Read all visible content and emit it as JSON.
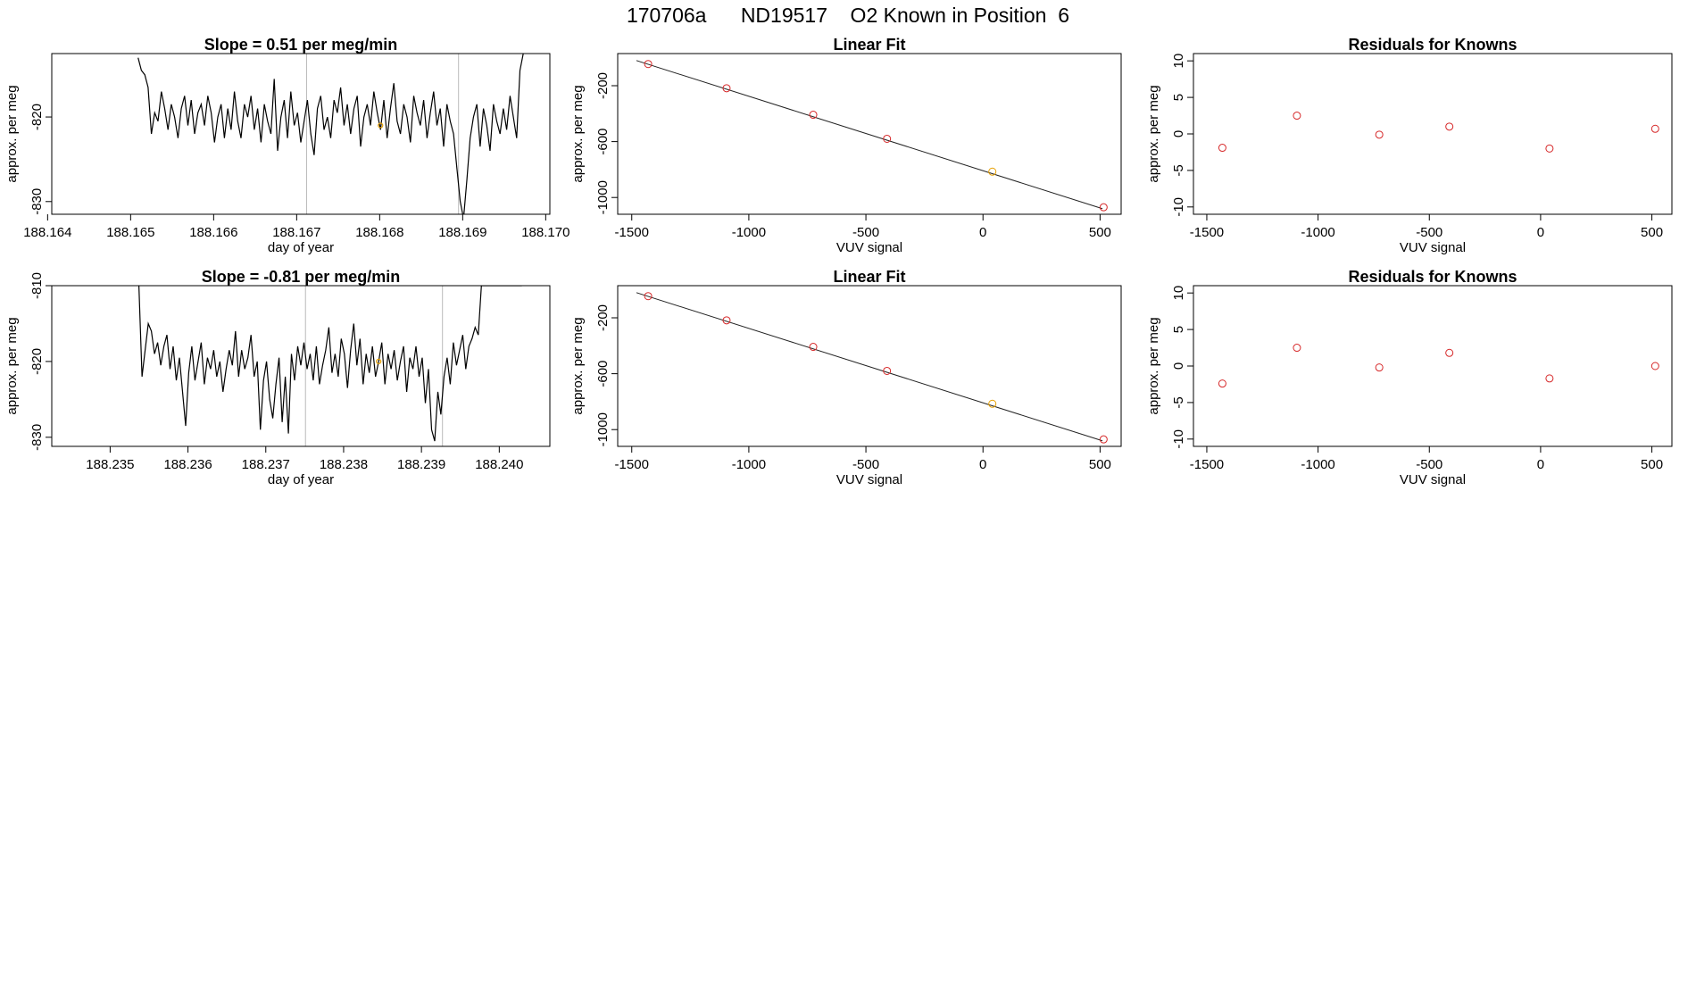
{
  "figure": {
    "title": "170706a      ND19517    O2 Known in Position  6"
  },
  "chart_data": [
    {
      "type": "line",
      "title": "Slope =  0.51  per meg/min",
      "xlabel": "day of year",
      "ylabel": "approx. per meg",
      "xlim": [
        188.16405,
        188.17005
      ],
      "ylim": [
        -831.5,
        -812.5
      ],
      "xticks": [
        188.164,
        188.165,
        188.166,
        188.167,
        188.168,
        188.169,
        188.17
      ],
      "xtick_labels": [
        "188.164",
        "188.165",
        "188.166",
        "188.167",
        "188.168",
        "188.169",
        "188.170"
      ],
      "yticks": [
        -830,
        -820
      ],
      "ytick_labels": [
        "-830",
        "-820"
      ],
      "vlines": [
        188.16712,
        188.16895
      ],
      "series": [
        {
          "color": "#000000",
          "x": [
            188.16509,
            188.16513,
            188.16517,
            188.16521,
            188.16525,
            188.16529,
            188.16533,
            188.16537,
            188.16541,
            188.16545,
            188.16549,
            188.16553,
            188.16557,
            188.16561,
            188.16565,
            188.16569,
            188.16573,
            188.16577,
            188.16581,
            188.16585,
            188.16589,
            188.16593,
            188.16597,
            188.16601,
            188.16605,
            188.16609,
            188.16613,
            188.16617,
            188.16621,
            188.16625,
            188.16629,
            188.16633,
            188.16637,
            188.16641,
            188.16645,
            188.16649,
            188.16653,
            188.16657,
            188.16661,
            188.16665,
            188.16669,
            188.16673,
            188.16677,
            188.16681,
            188.16685,
            188.16689,
            188.16693,
            188.16697,
            188.16701,
            188.16705,
            188.16709,
            188.16713,
            188.16717,
            188.16721,
            188.16725,
            188.16729,
            188.16733,
            188.16737,
            188.16741,
            188.16745,
            188.16749,
            188.16753,
            188.16757,
            188.16761,
            188.16765,
            188.16769,
            188.16773,
            188.16777,
            188.16781,
            188.16785,
            188.16789,
            188.16793,
            188.16797,
            188.16801,
            188.16805,
            188.16809,
            188.16813,
            188.16817,
            188.16821,
            188.16825,
            188.16829,
            188.16833,
            188.16837,
            188.16841,
            188.16845,
            188.16849,
            188.16853,
            188.16857,
            188.16861,
            188.16865,
            188.16869,
            188.16873,
            188.16877,
            188.16881,
            188.16885,
            188.16889,
            188.16893,
            188.16897,
            188.16901,
            188.16905,
            188.16909,
            188.16913,
            188.16917,
            188.16921,
            188.16925,
            188.16929,
            188.16933,
            188.16937,
            188.16941,
            188.16945,
            188.16949,
            188.16953,
            188.16957,
            188.16961,
            188.16965,
            188.16969,
            188.16973
          ],
          "y": [
            -813.0,
            -814.5,
            -815.0,
            -816.5,
            -822.0,
            -819.5,
            -820.5,
            -817.0,
            -819.0,
            -821.5,
            -818.5,
            -820.0,
            -822.5,
            -819.0,
            -817.5,
            -821.0,
            -818.0,
            -822.0,
            -819.5,
            -818.5,
            -821.0,
            -817.5,
            -819.5,
            -823.0,
            -820.0,
            -818.5,
            -822.5,
            -819.0,
            -821.5,
            -817.0,
            -820.5,
            -822.5,
            -818.5,
            -820.0,
            -817.5,
            -821.5,
            -819.0,
            -823.0,
            -818.5,
            -820.5,
            -822.0,
            -815.5,
            -824.0,
            -820.0,
            -818.0,
            -822.5,
            -817.0,
            -821.0,
            -819.5,
            -823.0,
            -820.5,
            -818.0,
            -822.0,
            -824.5,
            -819.0,
            -817.5,
            -821.5,
            -820.0,
            -822.5,
            -818.0,
            -819.5,
            -816.5,
            -821.0,
            -818.5,
            -822.0,
            -819.0,
            -817.5,
            -823.5,
            -820.0,
            -818.5,
            -821.0,
            -817.0,
            -819.5,
            -821.5,
            -818.0,
            -822.5,
            -819.0,
            -816.0,
            -820.5,
            -822.0,
            -818.5,
            -820.0,
            -823.0,
            -817.5,
            -819.5,
            -821.0,
            -818.0,
            -822.5,
            -819.5,
            -817.0,
            -821.0,
            -819.0,
            -823.5,
            -818.5,
            -820.5,
            -822.0,
            -826.0,
            -830.0,
            -832.0,
            -827.5,
            -822.5,
            -820.0,
            -818.5,
            -823.5,
            -819.0,
            -821.0,
            -824.0,
            -818.5,
            -820.5,
            -822.0,
            -819.0,
            -821.5,
            -817.5,
            -820.0,
            -822.5,
            -814.5,
            -812.5
          ]
        }
      ],
      "highlight_points": [
        {
          "x": 188.16801,
          "y": -821.0,
          "color": "#e69f00"
        }
      ]
    },
    {
      "type": "scatter",
      "title": "Linear Fit",
      "xlabel": "VUV signal",
      "ylabel": "approx. per meg",
      "xlim": [
        -1560,
        590
      ],
      "ylim": [
        -1120,
        30
      ],
      "xticks": [
        -1500,
        -1000,
        -500,
        0,
        500
      ],
      "xtick_labels": [
        "-1500",
        "-1000",
        "-500",
        "0",
        "500"
      ],
      "yticks": [
        -200,
        -600,
        -1000
      ],
      "ytick_labels": [
        "-200",
        "-600",
        "-1000"
      ],
      "fit_line": {
        "x": [
          -1480,
          510
        ],
        "y": [
          -20,
          -1080
        ]
      },
      "points": [
        {
          "x": -1430,
          "y": -45,
          "color": "#d62728"
        },
        {
          "x": -1095,
          "y": -218,
          "color": "#d62728"
        },
        {
          "x": -725,
          "y": -408,
          "color": "#d62728"
        },
        {
          "x": -410,
          "y": -580,
          "color": "#d62728"
        },
        {
          "x": 40,
          "y": -815,
          "color": "#e69f00"
        },
        {
          "x": 515,
          "y": -1070,
          "color": "#d62728"
        }
      ]
    },
    {
      "type": "scatter",
      "title": "Residuals for Knowns",
      "xlabel": "VUV signal",
      "ylabel": "approx. per meg",
      "xlim": [
        -1560,
        590
      ],
      "ylim": [
        -11,
        11
      ],
      "xticks": [
        -1500,
        -1000,
        -500,
        0,
        500
      ],
      "xtick_labels": [
        "-1500",
        "-1000",
        "-500",
        "0",
        "500"
      ],
      "yticks": [
        -10,
        -5,
        0,
        5,
        10
      ],
      "ytick_labels": [
        "-10",
        "-5",
        "0",
        "5",
        "10"
      ],
      "points": [
        {
          "x": -1430,
          "y": -1.9,
          "color": "#d62728"
        },
        {
          "x": -1095,
          "y": 2.5,
          "color": "#d62728"
        },
        {
          "x": -725,
          "y": -0.1,
          "color": "#d62728"
        },
        {
          "x": -410,
          "y": 1.0,
          "color": "#d62728"
        },
        {
          "x": 40,
          "y": -2.0,
          "color": "#d62728"
        },
        {
          "x": 515,
          "y": 0.7,
          "color": "#d62728"
        }
      ]
    },
    {
      "type": "line",
      "title": "Slope =  -0.81  per meg/min",
      "xlabel": "day of year",
      "ylabel": "approx. per meg",
      "xlim": [
        188.23425,
        188.24065
      ],
      "ylim": [
        -831.2,
        -810.0
      ],
      "xticks": [
        188.235,
        188.236,
        188.237,
        188.238,
        188.239,
        188.24
      ],
      "xtick_labels": [
        "188.235",
        "188.236",
        "188.237",
        "188.238",
        "188.239",
        "188.240"
      ],
      "yticks": [
        -830,
        -820,
        -810
      ],
      "ytick_labels": [
        "-830",
        "-820",
        "-810"
      ],
      "vlines": [
        188.23751,
        188.23927
      ],
      "series": [
        {
          "color": "#000000",
          "x": [
            188.23537,
            188.23541,
            188.23545,
            188.23549,
            188.23553,
            188.23557,
            188.23561,
            188.23565,
            188.23569,
            188.23573,
            188.23577,
            188.23581,
            188.23585,
            188.23589,
            188.23593,
            188.23597,
            188.23601,
            188.23605,
            188.23609,
            188.23613,
            188.23617,
            188.23621,
            188.23625,
            188.23629,
            188.23633,
            188.23637,
            188.23641,
            188.23645,
            188.23649,
            188.23653,
            188.23657,
            188.23661,
            188.23665,
            188.23669,
            188.23673,
            188.23677,
            188.23681,
            188.23685,
            188.23689,
            188.23693,
            188.23697,
            188.23701,
            188.23705,
            188.23709,
            188.23713,
            188.23717,
            188.23721,
            188.23725,
            188.23729,
            188.23733,
            188.23737,
            188.23741,
            188.23745,
            188.23749,
            188.23753,
            188.23757,
            188.23761,
            188.23765,
            188.23769,
            188.23773,
            188.23777,
            188.23781,
            188.23785,
            188.23789,
            188.23793,
            188.23797,
            188.23801,
            188.23805,
            188.23809,
            188.23813,
            188.23817,
            188.23821,
            188.23825,
            188.23829,
            188.23833,
            188.23837,
            188.23841,
            188.23845,
            188.23849,
            188.23853,
            188.23857,
            188.23861,
            188.23865,
            188.23869,
            188.23873,
            188.23877,
            188.23881,
            188.23885,
            188.23889,
            188.23893,
            188.23897,
            188.23901,
            188.23905,
            188.23909,
            188.23913,
            188.23917,
            188.23921,
            188.23925,
            188.23929,
            188.23933,
            188.23937,
            188.23941,
            188.23945,
            188.23949,
            188.23953,
            188.23957,
            188.23961,
            188.23965,
            188.23969,
            188.23973,
            188.23977,
            188.23981,
            188.23985,
            188.23989,
            188.23993,
            188.23997,
            188.24001,
            188.24005,
            188.24009,
            188.24013,
            188.24017,
            188.24021,
            188.24025,
            188.24029
          ],
          "y": [
            -810.0,
            -822.0,
            -818.5,
            -815.0,
            -816.0,
            -819.0,
            -817.5,
            -820.5,
            -818.0,
            -816.5,
            -821.0,
            -818.0,
            -822.5,
            -819.5,
            -824.0,
            -828.5,
            -821.5,
            -818.0,
            -822.5,
            -820.0,
            -817.5,
            -823.0,
            -819.5,
            -821.0,
            -818.5,
            -822.0,
            -820.0,
            -824.0,
            -821.0,
            -818.5,
            -820.5,
            -816.0,
            -822.0,
            -818.5,
            -821.0,
            -819.5,
            -816.5,
            -822.0,
            -820.0,
            -829.0,
            -822.5,
            -820.0,
            -825.0,
            -827.5,
            -823.0,
            -819.5,
            -828.0,
            -822.0,
            -829.5,
            -819.0,
            -822.5,
            -818.0,
            -820.5,
            -817.5,
            -821.0,
            -819.0,
            -822.5,
            -818.0,
            -823.0,
            -820.5,
            -818.5,
            -815.5,
            -821.5,
            -819.0,
            -822.0,
            -817.0,
            -819.0,
            -823.5,
            -818.5,
            -815.0,
            -820.5,
            -817.0,
            -823.0,
            -819.0,
            -821.5,
            -818.0,
            -822.0,
            -820.0,
            -817.5,
            -823.0,
            -819.0,
            -821.0,
            -818.5,
            -822.5,
            -820.0,
            -818.0,
            -824.0,
            -819.5,
            -821.0,
            -818.0,
            -822.0,
            -819.5,
            -825.5,
            -821.0,
            -829.0,
            -830.5,
            -824.0,
            -827.0,
            -822.0,
            -819.5,
            -823.0,
            -817.5,
            -820.5,
            -818.5,
            -816.5,
            -821.0,
            -818.0,
            -817.0,
            -815.5,
            -816.5,
            -810.0,
            -810.0,
            -810.0,
            -810.0,
            -810.0,
            -810.0,
            -810.0,
            -810.0,
            -810.0,
            -810.0,
            -810.0,
            -810.0,
            -810.0,
            -810.0
          ]
        }
      ],
      "highlight_points": [
        {
          "x": 188.23845,
          "y": -820.0,
          "color": "#e69f00"
        }
      ]
    },
    {
      "type": "scatter",
      "title": "Linear Fit",
      "xlabel": "VUV signal",
      "ylabel": "approx. per meg",
      "xlim": [
        -1560,
        590
      ],
      "ylim": [
        -1120,
        30
      ],
      "xticks": [
        -1500,
        -1000,
        -500,
        0,
        500
      ],
      "xtick_labels": [
        "-1500",
        "-1000",
        "-500",
        "0",
        "500"
      ],
      "yticks": [
        -200,
        -600,
        -1000
      ],
      "ytick_labels": [
        "-200",
        "-600",
        "-1000"
      ],
      "fit_line": {
        "x": [
          -1480,
          510
        ],
        "y": [
          -20,
          -1080
        ]
      },
      "points": [
        {
          "x": -1430,
          "y": -45,
          "color": "#d62728"
        },
        {
          "x": -1095,
          "y": -218,
          "color": "#d62728"
        },
        {
          "x": -725,
          "y": -408,
          "color": "#d62728"
        },
        {
          "x": -410,
          "y": -580,
          "color": "#d62728"
        },
        {
          "x": 40,
          "y": -815,
          "color": "#e69f00"
        },
        {
          "x": 515,
          "y": -1070,
          "color": "#d62728"
        }
      ]
    },
    {
      "type": "scatter",
      "title": "Residuals for Knowns",
      "xlabel": "VUV signal",
      "ylabel": "approx. per meg",
      "xlim": [
        -1560,
        590
      ],
      "ylim": [
        -11,
        11
      ],
      "xticks": [
        -1500,
        -1000,
        -500,
        0,
        500
      ],
      "xtick_labels": [
        "-1500",
        "-1000",
        "-500",
        "0",
        "500"
      ],
      "yticks": [
        -10,
        -5,
        0,
        5,
        10
      ],
      "ytick_labels": [
        "-10",
        "-5",
        "0",
        "5",
        "10"
      ],
      "points": [
        {
          "x": -1430,
          "y": -2.4,
          "color": "#d62728"
        },
        {
          "x": -1095,
          "y": 2.5,
          "color": "#d62728"
        },
        {
          "x": -725,
          "y": -0.2,
          "color": "#d62728"
        },
        {
          "x": -410,
          "y": 1.8,
          "color": "#d62728"
        },
        {
          "x": 40,
          "y": -1.7,
          "color": "#d62728"
        },
        {
          "x": 515,
          "y": 0.0,
          "color": "#d62728"
        }
      ]
    }
  ]
}
